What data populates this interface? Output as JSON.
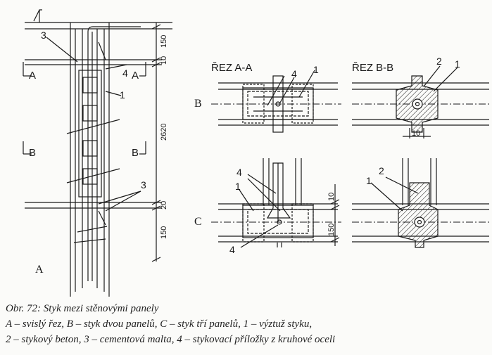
{
  "labels": {
    "section_aa": "ŘEZ A-A",
    "section_bb": "ŘEZ B-B",
    "row_b": "B",
    "row_c": "C",
    "fig_a": "A",
    "cut_a": "A",
    "cut_b": "B",
    "n1": "1",
    "n2": "2",
    "n3": "3",
    "n4": "4"
  },
  "dimensions": {
    "d150": "150",
    "d10": "10",
    "d2620": "2620",
    "d20": "20"
  },
  "caption": {
    "line1": "Obr. 72: Styk mezi stěnovými panely",
    "line2": "A – svislý řez, B – styk dvou panelů, C – styk tří panelů, 1 – výztuž styku,",
    "line3": "2 – stykový beton, 3 – cementová malta, 4 – stykovací příložky z kruhové oceli"
  }
}
